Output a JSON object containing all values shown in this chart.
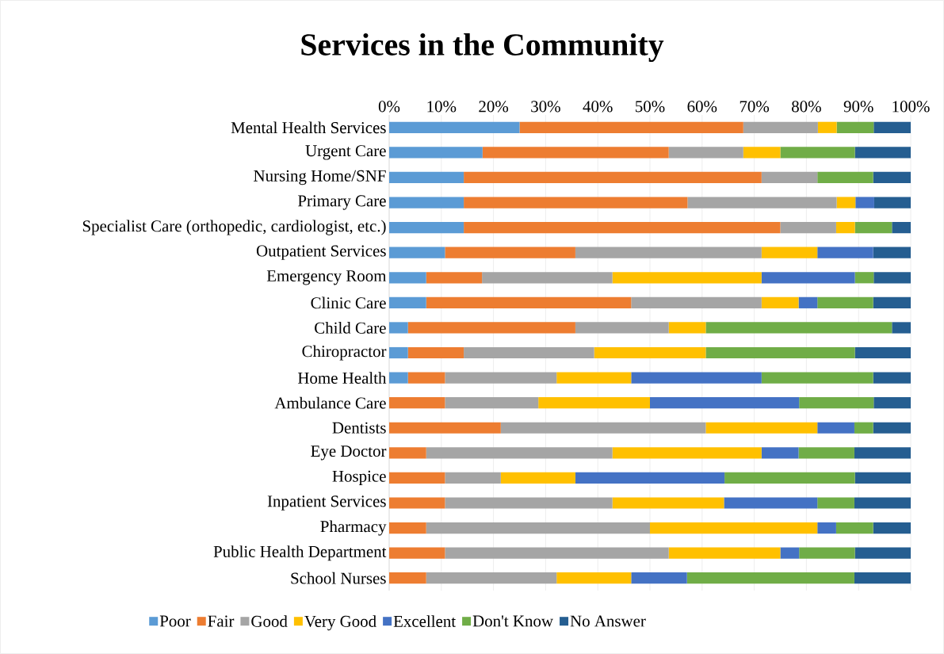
{
  "chart_data": {
    "type": "bar",
    "orientation": "horizontal",
    "stacked": true,
    "title": "Services in the Community",
    "categories": [
      "Mental Health Services",
      "Urgent Care",
      "Nursing Home/SNF",
      "Primary Care",
      "Specialist Care (orthopedic, cardiologist, etc.)",
      "Outpatient Services",
      "Emergency Room",
      "Clinic Care",
      "Child Care",
      "Chiropractor",
      "Home Health",
      "Ambulance Care",
      "Dentists",
      "Eye Doctor",
      "Hospice",
      "Inpatient Services",
      "Pharmacy",
      "Public Health Department",
      "School Nurses"
    ],
    "series": [
      {
        "name": "Poor",
        "color": "#5b9bd5",
        "values": [
          25,
          17.9,
          14.3,
          14.3,
          14.3,
          10.7,
          7.1,
          7.1,
          3.6,
          3.6,
          3.6,
          0,
          0,
          0,
          0,
          0,
          0,
          0,
          0
        ]
      },
      {
        "name": "Fair",
        "color": "#ed7d31",
        "values": [
          42.9,
          35.7,
          57.1,
          42.9,
          60.7,
          25,
          10.7,
          39.3,
          32.1,
          10.7,
          7.1,
          10.7,
          21.4,
          7.1,
          10.7,
          10.7,
          7.1,
          10.7,
          7.1
        ]
      },
      {
        "name": "Good",
        "color": "#a5a5a5",
        "values": [
          14.3,
          14.3,
          10.7,
          28.6,
          10.7,
          35.7,
          25,
          25,
          17.9,
          25,
          21.4,
          17.9,
          39.3,
          35.7,
          10.7,
          32.1,
          42.9,
          42.9,
          25
        ]
      },
      {
        "name": "Very Good",
        "color": "#ffc000",
        "values": [
          3.6,
          7.1,
          0,
          3.6,
          3.6,
          10.7,
          28.6,
          7.1,
          7.1,
          21.4,
          14.3,
          21.4,
          21.4,
          28.6,
          14.3,
          21.4,
          32.1,
          21.4,
          14.3
        ]
      },
      {
        "name": "Excellent",
        "color": "#4472c4",
        "values": [
          0,
          0,
          0,
          3.6,
          0,
          10.7,
          17.9,
          3.6,
          0,
          0,
          25,
          28.6,
          7.1,
          7.1,
          28.6,
          17.9,
          3.6,
          3.6,
          10.7
        ]
      },
      {
        "name": "Don't Know",
        "color": "#70ad47",
        "values": [
          7.1,
          14.3,
          10.7,
          0,
          7.1,
          0,
          3.6,
          10.7,
          35.7,
          28.6,
          21.4,
          14.3,
          3.6,
          10.7,
          25,
          7.1,
          7.1,
          10.7,
          32.1
        ]
      },
      {
        "name": "No Answer",
        "color": "#255e91",
        "values": [
          7.1,
          10.7,
          7.2,
          7.0,
          3.6,
          7.2,
          7.1,
          7.2,
          3.6,
          10.7,
          7.2,
          7.1,
          7.2,
          10.8,
          10.7,
          10.8,
          7.2,
          10.7,
          10.8
        ]
      }
    ],
    "xlim": [
      0,
      100
    ],
    "xticks": [
      {
        "value": 0,
        "label": "0%"
      },
      {
        "value": 10,
        "label": "10%"
      },
      {
        "value": 20,
        "label": "20%"
      },
      {
        "value": 30,
        "label": "30%"
      },
      {
        "value": 40,
        "label": "40%"
      },
      {
        "value": 50,
        "label": "50%"
      },
      {
        "value": 60,
        "label": "60%"
      },
      {
        "value": 70,
        "label": "70%"
      },
      {
        "value": 80,
        "label": "80%"
      },
      {
        "value": 90,
        "label": "90%"
      },
      {
        "value": 100,
        "label": "100%"
      }
    ],
    "grid": "x",
    "legend": "bottom"
  }
}
